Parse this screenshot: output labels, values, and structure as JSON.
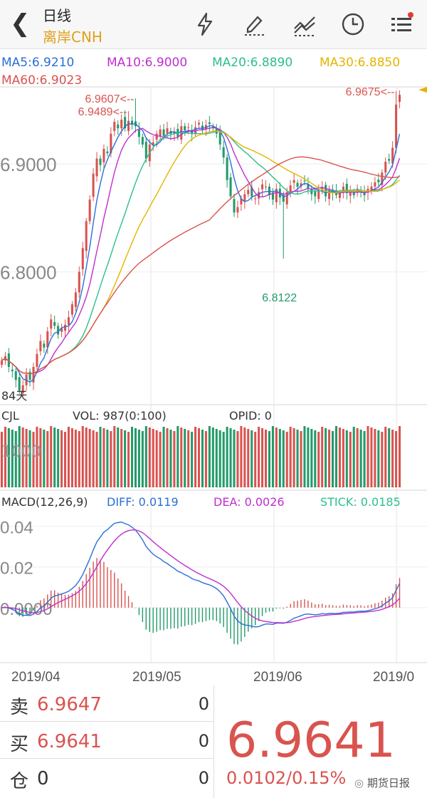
{
  "header": {
    "title": "日线",
    "symbol": "离岸CNH",
    "icons": [
      "back-chevron-icon",
      "lightning-icon",
      "draw-pen-icon",
      "indicator-lines-icon",
      "clock-icon",
      "menu-list-icon"
    ]
  },
  "ma_legend": [
    {
      "text": "MA5:6.9210",
      "color": "#2a6fd6"
    },
    {
      "text": "MA10:6.9000",
      "color": "#c02ed0"
    },
    {
      "text": "MA20:6.8890",
      "color": "#2ebf8a"
    },
    {
      "text": "MA30:6.8850",
      "color": "#e5b400"
    },
    {
      "text": "MA60:6.9023",
      "color": "#d9534f"
    }
  ],
  "price_panel": {
    "y_ticks": [
      {
        "value": 6.9,
        "label": "6.9000"
      },
      {
        "value": 6.8,
        "label": "6.8000"
      }
    ],
    "ylim": [
      6.677,
      6.97
    ],
    "annotations": [
      {
        "text": "6.9489<--",
        "value": 6.9489,
        "index": 36
      },
      {
        "text": "6.9607<--",
        "value": 6.9607,
        "index": 38
      },
      {
        "text": "6.9675<--",
        "value": 6.9675,
        "index": 112
      },
      {
        "text": "6.8122",
        "value": 6.8122,
        "index": 80
      }
    ],
    "left_label": "84天"
  },
  "volume_panel": {
    "title": "CJL",
    "vol": "VOL: 987(0:100)",
    "opid": "OPID: 0",
    "tick": "1000"
  },
  "macd_panel": {
    "title": "MACD(12,26,9)",
    "diff": "DIFF: 0.0119",
    "dea": "DEA: 0.0026",
    "stick": "STICK: 0.0185",
    "y_ticks": [
      {
        "value": 0.04,
        "label": "0.04"
      },
      {
        "value": 0.02,
        "label": "0.02"
      },
      {
        "value": 0,
        "label": "0.0000"
      }
    ],
    "ylim": [
      -0.027,
      0.057
    ]
  },
  "x_labels": [
    "2019/04",
    "2019/05",
    "2019/06",
    "2019/0"
  ],
  "quote": {
    "sell_label": "卖",
    "sell_price": "6.9647",
    "sell_qty": "0",
    "buy_label": "买",
    "buy_price": "6.9641",
    "buy_qty": "0",
    "pos_label": "仓",
    "pos_value": "0",
    "pos_qty": "0",
    "last_price": "6.9641",
    "change": "0.0102/0.15%"
  },
  "watermark": "期货日报",
  "colors": {
    "up": "#d9534f",
    "down": "#239a6a",
    "ma5": "#2a6fd6",
    "ma10": "#c02ed0",
    "ma20": "#2ebf8a",
    "ma30": "#e5b400",
    "ma60": "#d9534f",
    "accent": "#e0a01d"
  },
  "chart_data": {
    "type": "candlestick",
    "closes": [
      6.718,
      6.722,
      6.712,
      6.708,
      6.7,
      6.69,
      6.695,
      6.705,
      6.7,
      6.712,
      6.724,
      6.736,
      6.73,
      6.745,
      6.756,
      6.75,
      6.742,
      6.748,
      6.751,
      6.758,
      6.77,
      6.781,
      6.8,
      6.822,
      6.847,
      6.867,
      6.891,
      6.905,
      6.899,
      6.914,
      6.91,
      6.928,
      6.939,
      6.933,
      6.941,
      6.933,
      6.94,
      6.937,
      6.935,
      6.925,
      6.918,
      6.905,
      6.918,
      6.92,
      6.928,
      6.932,
      6.926,
      6.933,
      6.928,
      6.93,
      6.925,
      6.935,
      6.931,
      6.934,
      6.928,
      6.934,
      6.938,
      6.932,
      6.936,
      6.937,
      6.933,
      6.928,
      6.918,
      6.906,
      6.885,
      6.87,
      6.855,
      6.86,
      6.868,
      6.872,
      6.876,
      6.87,
      6.868,
      6.874,
      6.881,
      6.879,
      6.871,
      6.867,
      6.877,
      6.869,
      6.865,
      6.874,
      6.88,
      6.885,
      6.879,
      6.882,
      6.884,
      6.877,
      6.872,
      6.87,
      6.876,
      6.878,
      6.87,
      6.876,
      6.873,
      6.871,
      6.873,
      6.879,
      6.873,
      6.874,
      6.871,
      6.877,
      6.874,
      6.871,
      6.877,
      6.879,
      6.883,
      6.883,
      6.892,
      6.902,
      6.903,
      6.915,
      6.955,
      6.964
    ],
    "ma_series": [
      {
        "name": "MA5",
        "last": 6.921
      },
      {
        "name": "MA10",
        "last": 6.9
      },
      {
        "name": "MA20",
        "last": 6.889
      },
      {
        "name": "MA30",
        "last": 6.885
      },
      {
        "name": "MA60",
        "last": 6.9023
      }
    ],
    "macd": {
      "diff": 0.0119,
      "dea": 0.0026,
      "stick": 0.0185
    },
    "x_labels": [
      "2019/04",
      "2019/05",
      "2019/06",
      "2019/0"
    ]
  }
}
